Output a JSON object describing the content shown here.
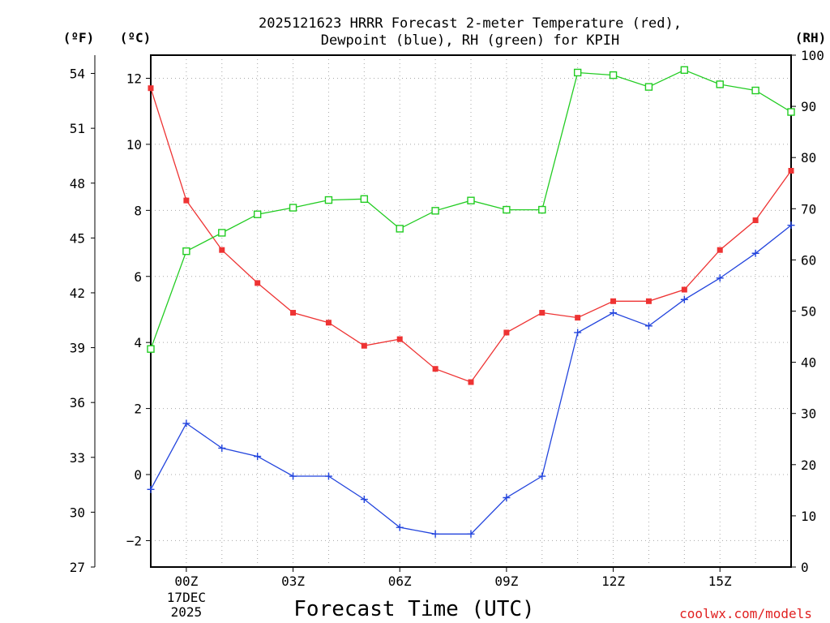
{
  "chart_data": {
    "type": "line",
    "title": "2025121623 HRRR Forecast 2-meter Temperature (red),",
    "subtitle": "Dewpoint (blue), RH (green) for KPIH",
    "xlabel": "Forecast Time (UTC)",
    "credit": "coolwx.com/models",
    "units": {
      "f": "(ºF)",
      "c": "(ºC)",
      "rh": "(RH)"
    },
    "x": [
      -1,
      0,
      1,
      2,
      3,
      4,
      5,
      6,
      7,
      8,
      9,
      10,
      11,
      12,
      13,
      14,
      15,
      16,
      17
    ],
    "xlim": [
      -1,
      17
    ],
    "x_ticks": [
      {
        "x": 0,
        "label": "00Z",
        "sub1": "17DEC",
        "sub2": "2025"
      },
      {
        "x": 3,
        "label": "03Z"
      },
      {
        "x": 6,
        "label": "06Z"
      },
      {
        "x": 9,
        "label": "09Z"
      },
      {
        "x": 12,
        "label": "12Z"
      },
      {
        "x": 15,
        "label": "15Z"
      }
    ],
    "ylim_c": [
      -2.8,
      12.7
    ],
    "yticks_c": [
      "-2",
      "0",
      "2",
      "4",
      "6",
      "8",
      "10",
      "12"
    ],
    "ylim_f": [
      27,
      55.0
    ],
    "yticks_f": [
      "27",
      "30",
      "33",
      "36",
      "39",
      "42",
      "45",
      "48",
      "51",
      "54"
    ],
    "ylim_rh": [
      0,
      100
    ],
    "yticks_rh": [
      "0",
      "10",
      "20",
      "30",
      "40",
      "50",
      "60",
      "70",
      "80",
      "90",
      "100"
    ],
    "grid": true,
    "series": [
      {
        "name": "Temperature",
        "unit": "C",
        "color": "#ee3333",
        "marker": "filled-square",
        "values": [
          11.7,
          8.3,
          6.8,
          5.8,
          4.9,
          4.6,
          3.9,
          4.1,
          3.2,
          2.8,
          4.3,
          4.9,
          4.75,
          5.25,
          5.25,
          5.6,
          6.8,
          7.7,
          9.2
        ]
      },
      {
        "name": "Dewpoint",
        "unit": "C",
        "color": "#2244dd",
        "marker": "plus",
        "values": [
          -0.45,
          1.55,
          0.8,
          0.55,
          -0.05,
          -0.05,
          -0.75,
          -1.6,
          -1.8,
          -1.8,
          -0.7,
          -0.05,
          4.3,
          4.9,
          4.5,
          5.3,
          5.95,
          6.7,
          7.55
        ]
      },
      {
        "name": "RH",
        "unit": "%",
        "color": "#22cc22",
        "marker": "open-square",
        "values": [
          42.6,
          61.7,
          65.3,
          68.9,
          70.2,
          71.7,
          71.9,
          66.1,
          69.6,
          71.6,
          69.8,
          69.8,
          96.6,
          96.1,
          93.8,
          97.1,
          94.3,
          93.1,
          88.9
        ]
      }
    ]
  }
}
